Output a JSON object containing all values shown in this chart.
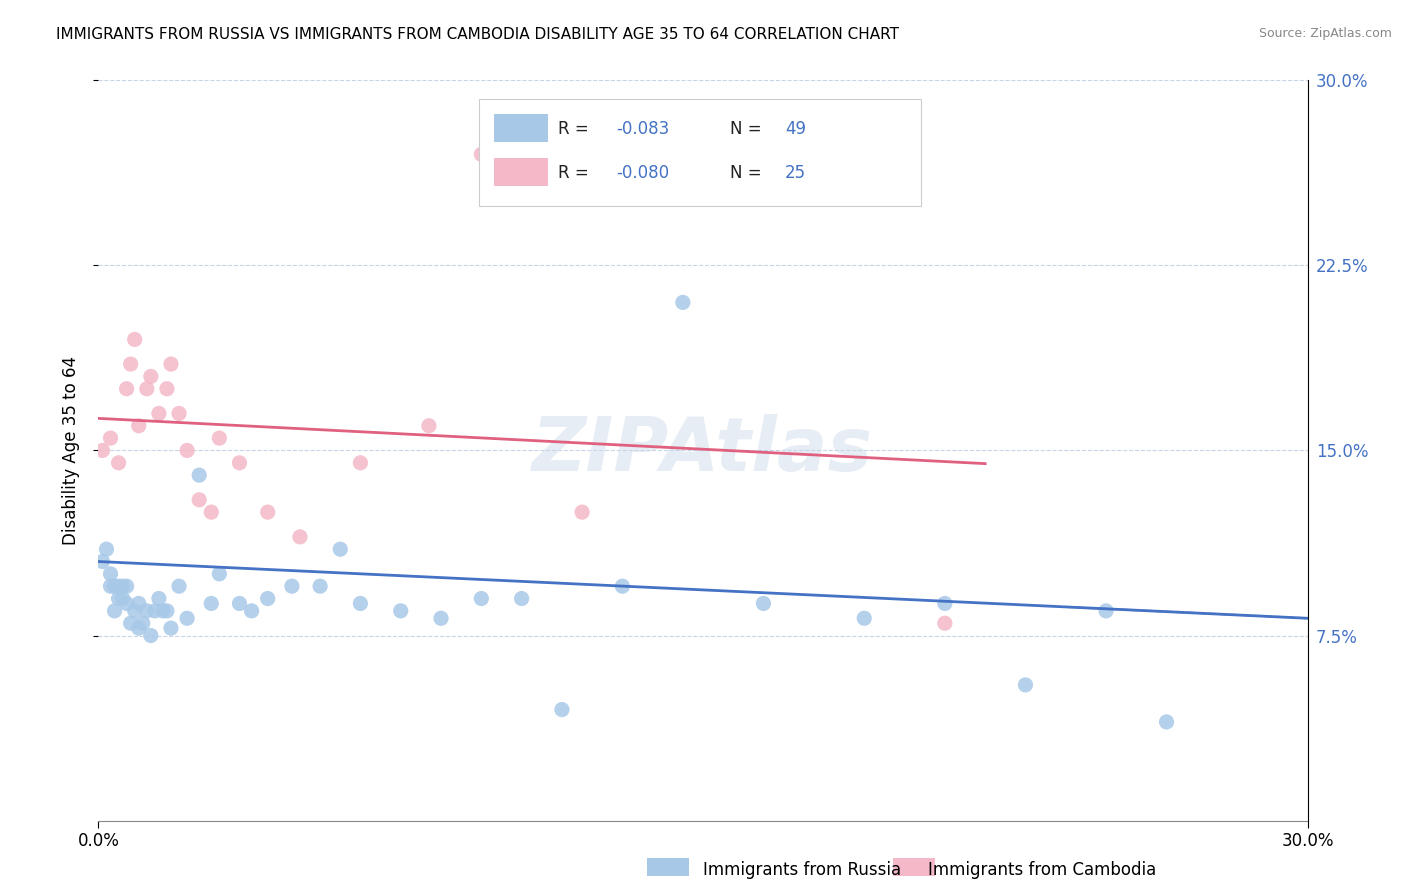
{
  "title": "IMMIGRANTS FROM RUSSIA VS IMMIGRANTS FROM CAMBODIA DISABILITY AGE 35 TO 64 CORRELATION CHART",
  "source": "Source: ZipAtlas.com",
  "ylabel": "Disability Age 35 to 64",
  "xlim": [
    0.0,
    0.3
  ],
  "ylim": [
    0.0,
    0.3
  ],
  "ytick_vals": [
    0.075,
    0.15,
    0.225,
    0.3
  ],
  "ytick_labels": [
    "7.5%",
    "15.0%",
    "22.5%",
    "30.0%"
  ],
  "watermark": "ZIPAtlas",
  "color_russia": "#a8c8e8",
  "color_cambodia": "#f4b8c8",
  "color_russia_line": "#4472c4",
  "color_cambodia_line": "#e06080",
  "color_text_blue": "#4472c4",
  "russia_x": [
    0.001,
    0.002,
    0.003,
    0.003,
    0.004,
    0.004,
    0.005,
    0.005,
    0.006,
    0.006,
    0.007,
    0.007,
    0.008,
    0.009,
    0.01,
    0.01,
    0.011,
    0.012,
    0.013,
    0.014,
    0.015,
    0.016,
    0.017,
    0.018,
    0.02,
    0.022,
    0.025,
    0.028,
    0.03,
    0.035,
    0.038,
    0.042,
    0.048,
    0.055,
    0.06,
    0.065,
    0.075,
    0.085,
    0.095,
    0.105,
    0.115,
    0.13,
    0.145,
    0.165,
    0.19,
    0.21,
    0.23,
    0.25,
    0.265
  ],
  "russia_y": [
    0.105,
    0.11,
    0.095,
    0.1,
    0.085,
    0.095,
    0.09,
    0.095,
    0.09,
    0.095,
    0.088,
    0.095,
    0.08,
    0.085,
    0.078,
    0.088,
    0.08,
    0.085,
    0.075,
    0.085,
    0.09,
    0.085,
    0.085,
    0.078,
    0.095,
    0.082,
    0.14,
    0.088,
    0.1,
    0.088,
    0.085,
    0.09,
    0.095,
    0.095,
    0.11,
    0.088,
    0.085,
    0.082,
    0.09,
    0.09,
    0.045,
    0.095,
    0.21,
    0.088,
    0.082,
    0.088,
    0.055,
    0.085,
    0.04
  ],
  "cambodia_x": [
    0.001,
    0.003,
    0.005,
    0.007,
    0.008,
    0.009,
    0.01,
    0.012,
    0.013,
    0.015,
    0.017,
    0.018,
    0.02,
    0.022,
    0.025,
    0.028,
    0.03,
    0.035,
    0.042,
    0.05,
    0.065,
    0.082,
    0.095,
    0.12,
    0.21
  ],
  "cambodia_y": [
    0.15,
    0.155,
    0.145,
    0.175,
    0.185,
    0.195,
    0.16,
    0.175,
    0.18,
    0.165,
    0.175,
    0.185,
    0.165,
    0.15,
    0.13,
    0.125,
    0.155,
    0.145,
    0.125,
    0.115,
    0.145,
    0.16,
    0.27,
    0.125,
    0.08
  ]
}
